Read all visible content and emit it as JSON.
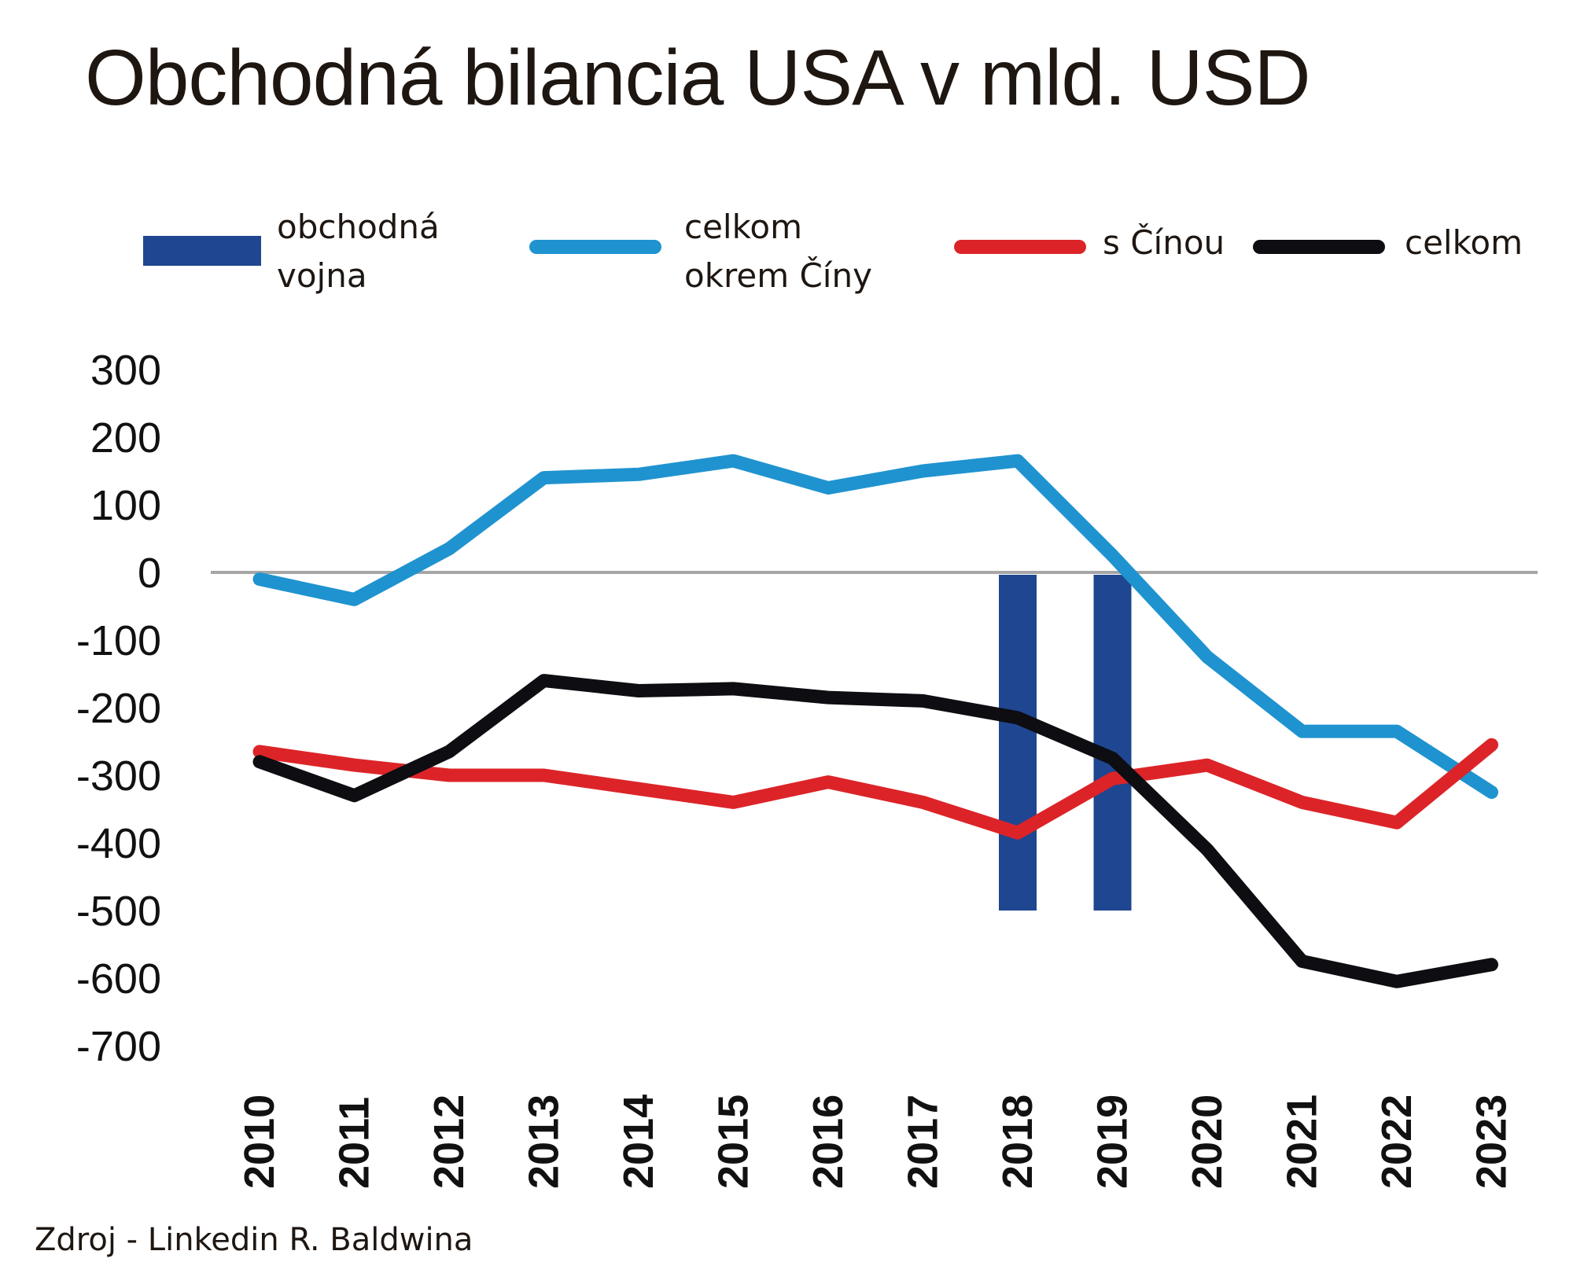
{
  "title": "Obchodná bilancia USA v mld. USD",
  "source": "Zdroj - Linkedin R. Baldwina",
  "legend": [
    {
      "label_line1": "obchodná",
      "label_line2": "vojna",
      "color": "#1f4690",
      "kind": "bar"
    },
    {
      "label_line1": "celkom",
      "label_line2": "okrem Číny",
      "color": "#1f93cf",
      "kind": "line"
    },
    {
      "label_line1": "s Čínou",
      "label_line2": "",
      "color": "#dc2428",
      "kind": "line"
    },
    {
      "label_line1": "celkom",
      "label_line2": "",
      "color": "#0d0d12",
      "kind": "line"
    }
  ],
  "chart_data": {
    "type": "line",
    "title": "Obchodná bilancia USA v mld. USD",
    "categories": [
      "2010",
      "2011",
      "2012",
      "2013",
      "2014",
      "2015",
      "2016",
      "2017",
      "2018",
      "2019",
      "2020",
      "2021",
      "2022",
      "2023"
    ],
    "ylim": [
      -700,
      300
    ],
    "yticks": [
      300,
      200,
      100,
      0,
      -100,
      -200,
      -300,
      -400,
      -500,
      -600,
      -700
    ],
    "grid": false,
    "legend_position": "top",
    "bars": {
      "name": "obchodná vojna",
      "color": "#1f4690",
      "categories": [
        "2018",
        "2019"
      ],
      "from": 0,
      "to": -500
    },
    "series": [
      {
        "name": "celkom okrem Číny",
        "color": "#1f93cf",
        "values": [
          -10,
          -40,
          35,
          140,
          145,
          165,
          125,
          150,
          165,
          25,
          -125,
          -235,
          -235,
          -325
        ]
      },
      {
        "name": "s Čínou",
        "color": "#dc2428",
        "values": [
          -265,
          -285,
          -300,
          -300,
          -320,
          -340,
          -310,
          -340,
          -385,
          -305,
          -285,
          -340,
          -370,
          -255
        ]
      },
      {
        "name": "celkom",
        "color": "#0d0d12",
        "values": [
          -280,
          -330,
          -265,
          -160,
          -175,
          -172,
          -185,
          -190,
          -215,
          -275,
          -410,
          -575,
          -605,
          -580
        ]
      }
    ]
  }
}
